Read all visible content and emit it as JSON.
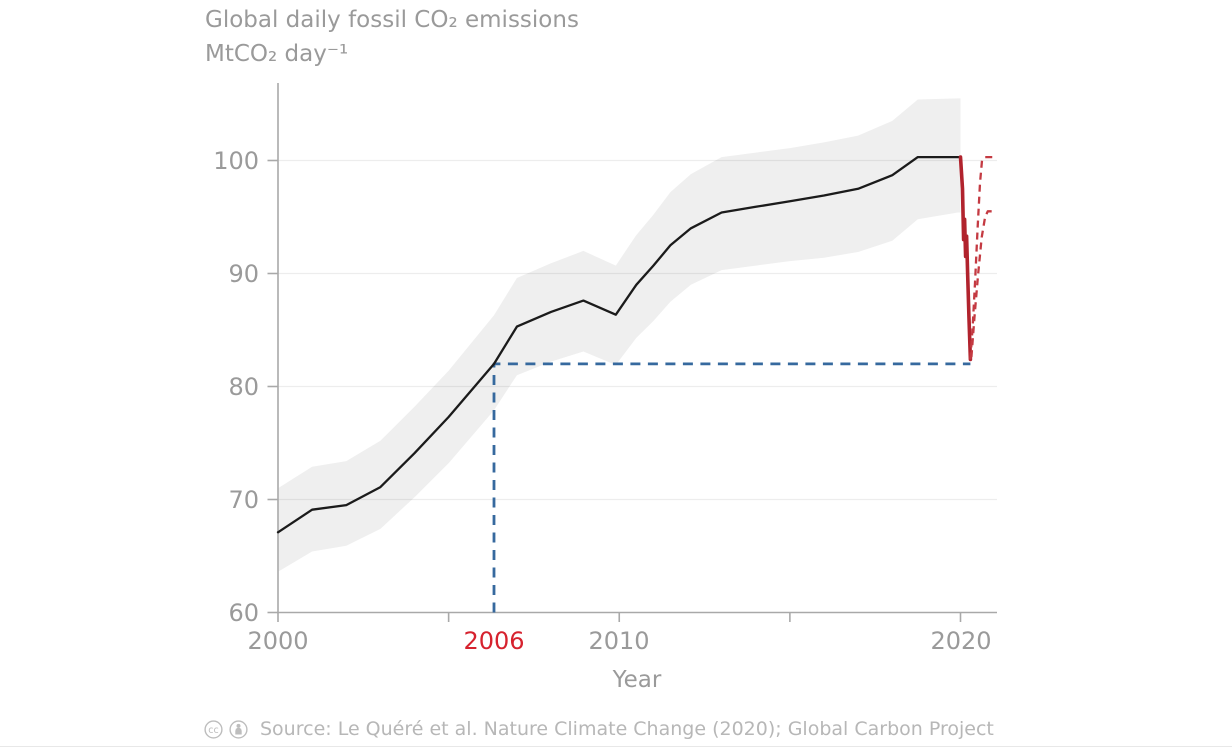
{
  "header": {
    "title_line1": "Global daily fossil CO₂ emissions",
    "title_line2": "MtCO₂ day⁻¹"
  },
  "axes": {
    "y_tick_labels": [
      "100",
      "90",
      "80",
      "70",
      "60"
    ],
    "x_tick_labels": [
      "2000",
      "2010",
      "2020"
    ],
    "x_highlight_label": "2006",
    "x_axis_title": "Year"
  },
  "footer": {
    "license_icons": [
      "cc",
      "by-attribution"
    ],
    "source_text": "Source: Le Quéré et al. Nature Climate Change (2020); Global Carbon Project"
  },
  "colors": {
    "line_black": "#1b1b1b",
    "band_gray": "#efefef",
    "covid_red_solid": "#b1232d",
    "covid_red_dashed": "#c43a42",
    "highlight_red_text": "#d6222e",
    "reference_blue": "#36699e",
    "axis_gray": "#a9a9a9",
    "grid_gray": "rgba(0,0,0,0.07)",
    "title_gray": "#9a9a9a",
    "footer_gray": "#b7b7b7"
  },
  "chart_data": {
    "type": "line",
    "title": "Global daily fossil CO₂ emissions",
    "ylabel": "MtCO₂ day⁻¹",
    "xlabel": "Year",
    "ylim": [
      60,
      105.5
    ],
    "x_range_years": [
      2000,
      2021.07
    ],
    "y_ticks": [
      60,
      70,
      80,
      90,
      100
    ],
    "x_ticks_all": [
      2000,
      2005,
      2010,
      2015,
      2020
    ],
    "x_ticks_labeled": [
      2000,
      2010,
      2020
    ],
    "x_tick_highlight": 2006,
    "grid": "horizontal-only",
    "legend": "none",
    "reference_line": {
      "level_mtco2_per_day": 82,
      "from_year": 2006.33,
      "to_year": 2020.29
    },
    "series": [
      {
        "name": "uncertainty-band",
        "type": "band",
        "color": "#efefef",
        "upper": [
          [
            2000.0,
            71.0
          ],
          [
            2001.0,
            72.9
          ],
          [
            2002.0,
            73.4
          ],
          [
            2003.0,
            75.2
          ],
          [
            2004.0,
            78.2
          ],
          [
            2005.0,
            81.4
          ],
          [
            2006.33,
            86.3
          ],
          [
            2007.0,
            89.6
          ],
          [
            2008.0,
            90.9
          ],
          [
            2008.95,
            92.0
          ],
          [
            2009.9,
            90.7
          ],
          [
            2010.5,
            93.4
          ],
          [
            2011.0,
            95.2
          ],
          [
            2011.5,
            97.2
          ],
          [
            2012.1,
            98.8
          ],
          [
            2013.0,
            100.3
          ],
          [
            2014.0,
            100.7
          ],
          [
            2015.0,
            101.1
          ],
          [
            2016.0,
            101.6
          ],
          [
            2017.0,
            102.2
          ],
          [
            2018.0,
            103.5
          ],
          [
            2018.75,
            105.4
          ],
          [
            2019.92,
            105.5
          ],
          [
            2020.0,
            105.5
          ]
        ],
        "lower": [
          [
            2000.0,
            63.6
          ],
          [
            2001.0,
            65.4
          ],
          [
            2002.0,
            65.9
          ],
          [
            2003.0,
            67.4
          ],
          [
            2004.0,
            70.2
          ],
          [
            2005.0,
            73.2
          ],
          [
            2006.33,
            77.9
          ],
          [
            2007.0,
            81.0
          ],
          [
            2008.0,
            82.2
          ],
          [
            2008.95,
            83.1
          ],
          [
            2009.9,
            81.9
          ],
          [
            2010.5,
            84.3
          ],
          [
            2011.0,
            85.8
          ],
          [
            2011.5,
            87.5
          ],
          [
            2012.1,
            89.0
          ],
          [
            2013.0,
            90.3
          ],
          [
            2014.0,
            90.7
          ],
          [
            2015.0,
            91.1
          ],
          [
            2016.0,
            91.4
          ],
          [
            2017.0,
            91.9
          ],
          [
            2018.0,
            92.9
          ],
          [
            2018.75,
            94.8
          ],
          [
            2019.92,
            95.4
          ],
          [
            2020.0,
            95.4
          ]
        ]
      },
      {
        "name": "2006-level-reference",
        "type": "line",
        "color": "#36699e",
        "width": 2.8,
        "dash": "10 7.5",
        "points": [
          [
            2006.33,
            60.0
          ],
          [
            2006.33,
            82.0
          ],
          [
            2020.29,
            82.0
          ]
        ]
      },
      {
        "name": "annual-mean-emissions",
        "type": "line",
        "color": "#1b1b1b",
        "width": 2.3,
        "points": [
          [
            2000.0,
            67.1
          ],
          [
            2001.0,
            69.1
          ],
          [
            2002.0,
            69.5
          ],
          [
            2003.0,
            71.1
          ],
          [
            2004.0,
            74.1
          ],
          [
            2005.0,
            77.3
          ],
          [
            2006.33,
            82.0
          ],
          [
            2007.0,
            85.3
          ],
          [
            2008.0,
            86.6
          ],
          [
            2008.95,
            87.6
          ],
          [
            2009.9,
            86.35
          ],
          [
            2010.5,
            89.0
          ],
          [
            2011.0,
            90.7
          ],
          [
            2011.5,
            92.5
          ],
          [
            2012.1,
            94.0
          ],
          [
            2013.0,
            95.4
          ],
          [
            2014.0,
            95.9
          ],
          [
            2015.0,
            96.4
          ],
          [
            2016.0,
            96.9
          ],
          [
            2017.0,
            97.5
          ],
          [
            2018.0,
            98.7
          ],
          [
            2018.75,
            100.3
          ],
          [
            2020.0,
            100.3
          ]
        ]
      },
      {
        "name": "covid-2020-observed",
        "type": "line",
        "color": "#b1232d",
        "width": 3.6,
        "points": [
          [
            2020.0,
            100.3
          ],
          [
            2020.06,
            97.5
          ],
          [
            2020.09,
            93.0
          ],
          [
            2020.12,
            94.8
          ],
          [
            2020.15,
            91.5
          ],
          [
            2020.18,
            93.3
          ],
          [
            2020.21,
            89.8
          ],
          [
            2020.25,
            86.0
          ],
          [
            2020.29,
            82.4
          ]
        ]
      },
      {
        "name": "covid-2020-scenario-high",
        "type": "line",
        "color": "#c43a42",
        "width": 2.3,
        "dash": "7 5",
        "points": [
          [
            2020.29,
            82.4
          ],
          [
            2020.36,
            85.5
          ],
          [
            2020.43,
            89.5
          ],
          [
            2020.5,
            94.0
          ],
          [
            2020.57,
            98.0
          ],
          [
            2020.63,
            100.0
          ],
          [
            2020.72,
            100.3
          ],
          [
            2021.05,
            100.3
          ]
        ]
      },
      {
        "name": "covid-2020-scenario-low",
        "type": "line",
        "color": "#c43a42",
        "width": 2.3,
        "dash": "7 5",
        "points": [
          [
            2020.32,
            82.6
          ],
          [
            2020.42,
            86.5
          ],
          [
            2020.52,
            90.0
          ],
          [
            2020.62,
            93.2
          ],
          [
            2020.72,
            95.0
          ],
          [
            2020.8,
            95.5
          ],
          [
            2020.95,
            95.5
          ]
        ]
      }
    ]
  }
}
